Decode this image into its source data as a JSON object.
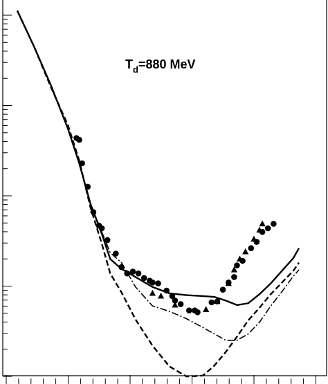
{
  "chart_data": {
    "type": "line",
    "title": "",
    "xlabel": "",
    "ylabel": "",
    "xlim": [
      0,
      100
    ],
    "ylim": [
      0,
      4.15
    ],
    "y_scale": "log",
    "grid": false,
    "annotation": {
      "main": "T",
      "sub": "d",
      "rest": "=880 MeV"
    },
    "series": [
      {
        "style": "solid",
        "width": 2.4,
        "x": [
          0,
          6,
          12,
          18,
          22,
          26,
          30,
          33,
          37,
          42,
          48,
          54,
          60,
          66,
          70,
          74,
          78,
          82,
          86,
          90,
          94,
          98,
          100
        ],
        "y": [
          4.05,
          3.65,
          3.22,
          2.74,
          2.36,
          1.91,
          1.58,
          1.3,
          1.19,
          1.1,
          0.99,
          0.92,
          0.9,
          0.89,
          0.88,
          0.84,
          0.79,
          0.81,
          0.91,
          1.03,
          1.17,
          1.31,
          1.42
        ]
      },
      {
        "style": "dashed",
        "width": 2.4,
        "x": [
          0,
          6,
          12,
          18,
          22,
          26,
          30,
          33,
          37,
          42,
          48,
          54,
          60,
          62,
          66,
          70,
          74,
          78,
          82,
          86,
          90,
          94,
          98,
          100
        ],
        "y": [
          4.05,
          3.65,
          3.2,
          2.78,
          2.39,
          1.87,
          1.47,
          1.14,
          0.93,
          0.63,
          0.34,
          0.11,
          0.0,
          0.0,
          0.01,
          0.12,
          0.27,
          0.44,
          0.62,
          0.76,
          0.91,
          1.04,
          1.17,
          1.26
        ]
      },
      {
        "style": "dashdot",
        "width": 1.6,
        "x": [
          0,
          6,
          12,
          18,
          22,
          26,
          30,
          33,
          37,
          42,
          48,
          54,
          60,
          66,
          70,
          74,
          78,
          82,
          86,
          90,
          94,
          98,
          100
        ],
        "y": [
          4.05,
          3.65,
          3.22,
          2.74,
          2.36,
          1.91,
          1.6,
          1.37,
          1.26,
          0.99,
          0.78,
          0.72,
          0.64,
          0.54,
          0.47,
          0.4,
          0.4,
          0.47,
          0.6,
          0.78,
          0.94,
          1.11,
          1.18
        ]
      }
    ],
    "points": {
      "circles": [
        [
          21,
          2.64
        ],
        [
          22,
          2.62
        ],
        [
          23,
          2.36
        ],
        [
          25,
          2.1
        ],
        [
          27,
          1.82
        ],
        [
          29,
          1.67
        ],
        [
          30,
          1.64
        ],
        [
          32,
          1.51
        ],
        [
          35,
          1.36
        ],
        [
          37,
          1.21
        ],
        [
          39,
          1.14
        ],
        [
          41,
          1.16
        ],
        [
          43,
          1.14
        ],
        [
          45,
          1.09
        ],
        [
          47,
          1.06
        ],
        [
          48,
          1.04
        ],
        [
          50,
          1.03
        ],
        [
          53,
          0.95
        ],
        [
          55,
          0.89
        ],
        [
          56,
          0.84
        ],
        [
          58,
          0.8
        ],
        [
          61,
          0.73
        ],
        [
          63,
          0.73
        ],
        [
          64,
          0.71
        ],
        [
          69,
          0.82
        ],
        [
          71,
          0.83
        ],
        [
          73,
          0.96
        ],
        [
          75,
          1.04
        ],
        [
          77,
          1.1
        ],
        [
          78,
          1.23
        ],
        [
          80,
          1.28
        ],
        [
          83,
          1.42
        ],
        [
          85,
          1.49
        ],
        [
          87,
          1.6
        ],
        [
          89,
          1.64
        ],
        [
          91,
          1.69
        ]
      ],
      "triangles": [
        [
          48,
          0.92
        ],
        [
          51,
          0.89
        ],
        [
          56,
          0.79
        ],
        [
          67,
          0.74
        ],
        [
          71,
          0.83
        ],
        [
          75,
          1.03
        ],
        [
          77,
          1.18
        ],
        [
          79,
          1.3
        ],
        [
          81,
          1.38
        ],
        [
          84,
          1.52
        ],
        [
          86,
          1.62
        ],
        [
          87,
          1.69
        ]
      ]
    }
  }
}
